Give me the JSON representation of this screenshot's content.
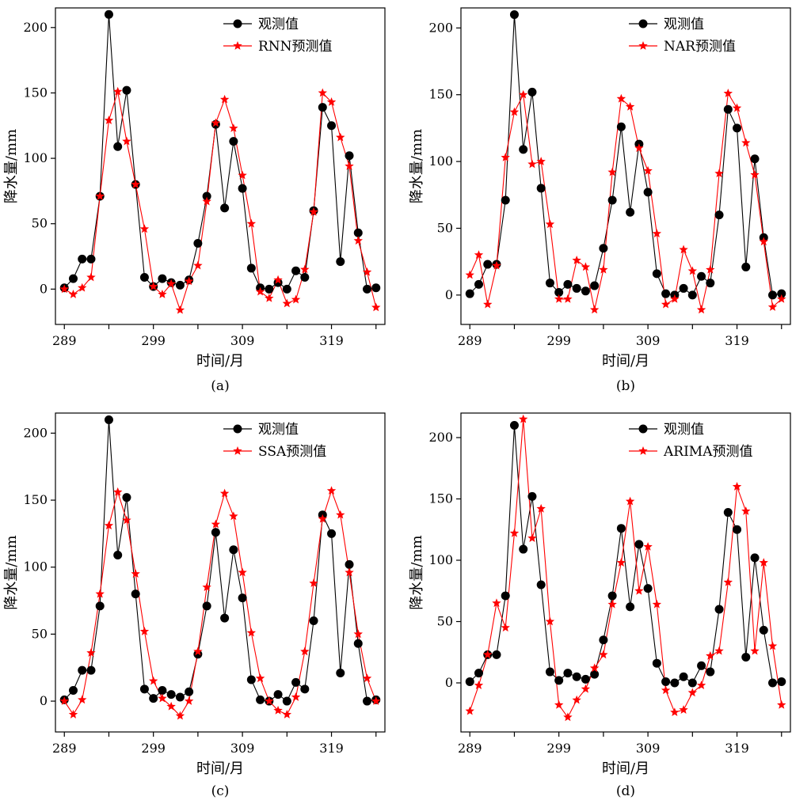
{
  "chart_data": [
    {
      "type": "line",
      "caption": "(a)",
      "xlabel": "时间/月",
      "ylabel": "降水量/mm",
      "xticks": [
        289,
        299,
        309,
        319
      ],
      "yticks": [
        0,
        50,
        100,
        150,
        200
      ],
      "xlim": [
        288,
        325
      ],
      "ylim": [
        -27,
        215
      ],
      "legend_position": "top-right",
      "x": [
        289,
        290,
        291,
        292,
        293,
        294,
        295,
        296,
        297,
        298,
        299,
        300,
        301,
        302,
        303,
        304,
        305,
        306,
        307,
        308,
        309,
        310,
        311,
        312,
        313,
        314,
        315,
        316,
        317,
        318,
        319,
        320,
        321,
        322,
        323,
        324
      ],
      "series": [
        {
          "name": "观测值",
          "color": "#000000",
          "marker": "circle",
          "values": [
            1,
            8,
            23,
            23,
            71,
            210,
            109,
            152,
            80,
            9,
            2,
            8,
            5,
            3,
            7,
            35,
            71,
            126,
            62,
            113,
            77,
            16,
            1,
            0,
            5,
            0,
            14,
            9,
            60,
            139,
            125,
            21,
            102,
            43,
            0,
            1
          ]
        },
        {
          "name": "RNN预测值",
          "color": "#ff0000",
          "marker": "star",
          "values": [
            0,
            -4,
            1,
            9,
            71,
            129,
            151,
            113,
            80,
            46,
            2,
            -4,
            4,
            -16,
            6,
            18,
            67,
            127,
            145,
            123,
            87,
            50,
            -2,
            -7,
            7,
            -11,
            -8,
            15,
            59,
            150,
            143,
            116,
            94,
            37,
            13,
            -14
          ]
        }
      ]
    },
    {
      "type": "line",
      "caption": "(b)",
      "xlabel": "时间/月",
      "ylabel": "降水量/mm",
      "xticks": [
        289,
        299,
        309,
        319
      ],
      "yticks": [
        0,
        50,
        100,
        150,
        200
      ],
      "xlim": [
        288,
        325
      ],
      "ylim": [
        -22,
        215
      ],
      "legend_position": "top-right",
      "x": [
        289,
        290,
        291,
        292,
        293,
        294,
        295,
        296,
        297,
        298,
        299,
        300,
        301,
        302,
        303,
        304,
        305,
        306,
        307,
        308,
        309,
        310,
        311,
        312,
        313,
        314,
        315,
        316,
        317,
        318,
        319,
        320,
        321,
        322,
        323,
        324
      ],
      "series": [
        {
          "name": "观测值",
          "color": "#000000",
          "marker": "circle",
          "values": [
            1,
            8,
            23,
            23,
            71,
            210,
            109,
            152,
            80,
            9,
            2,
            8,
            5,
            3,
            7,
            35,
            71,
            126,
            62,
            113,
            77,
            16,
            1,
            0,
            5,
            0,
            14,
            9,
            60,
            139,
            125,
            21,
            102,
            43,
            0,
            1
          ]
        },
        {
          "name": "NAR预测值",
          "color": "#ff0000",
          "marker": "star",
          "values": [
            15,
            30,
            -7,
            22,
            103,
            137,
            150,
            98,
            100,
            53,
            -3,
            -3,
            26,
            21,
            -11,
            19,
            92,
            147,
            141,
            110,
            93,
            46,
            -7,
            -3,
            34,
            18,
            -11,
            19,
            91,
            151,
            140,
            114,
            90,
            40,
            -9,
            -3
          ]
        }
      ]
    },
    {
      "type": "line",
      "caption": "(c)",
      "xlabel": "时间/月",
      "ylabel": "降水量/mm",
      "xticks": [
        289,
        299,
        309,
        319
      ],
      "yticks": [
        0,
        50,
        100,
        150,
        200
      ],
      "xlim": [
        288,
        325
      ],
      "ylim": [
        -23,
        215
      ],
      "legend_position": "top-right",
      "x": [
        289,
        290,
        291,
        292,
        293,
        294,
        295,
        296,
        297,
        298,
        299,
        300,
        301,
        302,
        303,
        304,
        305,
        306,
        307,
        308,
        309,
        310,
        311,
        312,
        313,
        314,
        315,
        316,
        317,
        318,
        319,
        320,
        321,
        322,
        323,
        324
      ],
      "series": [
        {
          "name": "观测值",
          "color": "#000000",
          "marker": "circle",
          "values": [
            1,
            8,
            23,
            23,
            71,
            210,
            109,
            152,
            80,
            9,
            2,
            8,
            5,
            3,
            7,
            35,
            71,
            126,
            62,
            113,
            77,
            16,
            1,
            0,
            5,
            0,
            14,
            9,
            60,
            139,
            125,
            21,
            102,
            43,
            0,
            1
          ]
        },
        {
          "name": "SSA预测值",
          "color": "#ff0000",
          "marker": "star",
          "values": [
            0,
            -10,
            1,
            36,
            80,
            131,
            156,
            135,
            95,
            52,
            15,
            2,
            -4,
            -11,
            0,
            37,
            85,
            132,
            155,
            138,
            96,
            51,
            17,
            0,
            -7,
            -10,
            3,
            37,
            88,
            136,
            157,
            139,
            96,
            50,
            17,
            0
          ]
        }
      ]
    },
    {
      "type": "line",
      "caption": "(d)",
      "xlabel": "时间/月",
      "ylabel": "降水量/mm",
      "xticks": [
        289,
        299,
        309,
        319
      ],
      "yticks": [
        0,
        50,
        100,
        150,
        200
      ],
      "xlim": [
        288,
        325
      ],
      "ylim": [
        -40,
        220
      ],
      "legend_position": "top-right",
      "x": [
        289,
        290,
        291,
        292,
        293,
        294,
        295,
        296,
        297,
        298,
        299,
        300,
        301,
        302,
        303,
        304,
        305,
        306,
        307,
        308,
        309,
        310,
        311,
        312,
        313,
        314,
        315,
        316,
        317,
        318,
        319,
        320,
        321,
        322,
        323,
        324
      ],
      "series": [
        {
          "name": "观测值",
          "color": "#000000",
          "marker": "circle",
          "values": [
            1,
            8,
            23,
            23,
            71,
            210,
            109,
            152,
            80,
            9,
            2,
            8,
            5,
            3,
            7,
            35,
            71,
            126,
            62,
            113,
            77,
            16,
            1,
            0,
            5,
            0,
            14,
            9,
            60,
            139,
            125,
            21,
            102,
            43,
            0,
            1
          ]
        },
        {
          "name": "ARIMA预测值",
          "color": "#ff0000",
          "marker": "star",
          "values": [
            -23,
            -2,
            23,
            65,
            45,
            122,
            215,
            118,
            142,
            50,
            -18,
            -28,
            -14,
            -5,
            12,
            23,
            64,
            98,
            148,
            75,
            111,
            64,
            -6,
            -24,
            -22,
            -8,
            -2,
            22,
            26,
            82,
            160,
            140,
            26,
            98,
            30,
            -18
          ]
        }
      ]
    }
  ]
}
